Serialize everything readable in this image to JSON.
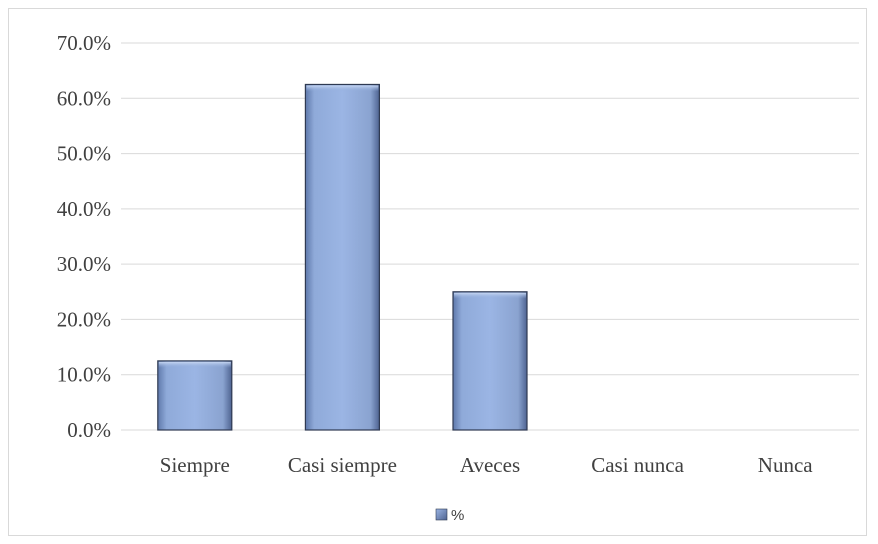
{
  "chart_data": {
    "type": "bar",
    "categories": [
      "Siempre",
      "Casi siempre",
      "Aveces",
      "Casi nunca",
      "Nunca"
    ],
    "series": [
      {
        "name": "%",
        "values": [
          12.5,
          62.5,
          25.0,
          0.0,
          0.0
        ]
      }
    ],
    "title": "",
    "xlabel": "",
    "ylabel": "",
    "ylim": [
      0,
      70
    ],
    "yticks": [
      "0.0%",
      "10.0%",
      "20.0%",
      "30.0%",
      "40.0%",
      "50.0%",
      "60.0%",
      "70.0%"
    ],
    "grid": true,
    "legend": "bottom",
    "colors": {
      "bar_fill": "#8fa9d8",
      "bar_edge": "#2f3a52",
      "grid": "#d9d9d9",
      "text": "#404040"
    }
  }
}
